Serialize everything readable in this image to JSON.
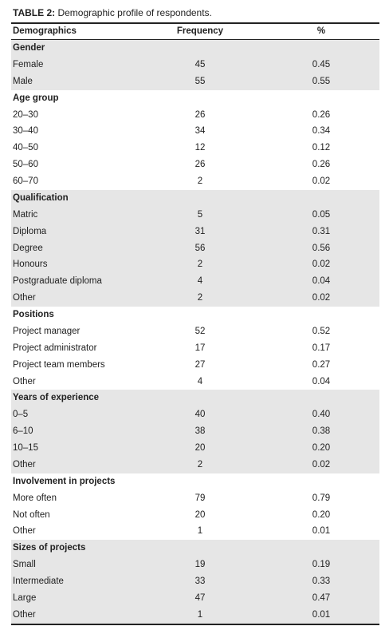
{
  "caption": {
    "label": "TABLE 2:",
    "text": "Demographic profile of respondents."
  },
  "table": {
    "headers": [
      "Demographics",
      "Frequency",
      "%"
    ],
    "groups": [
      {
        "title": "Gender",
        "rows": [
          [
            "Female",
            45,
            "0.45"
          ],
          [
            "Male",
            55,
            "0.55"
          ]
        ]
      },
      {
        "title": "Age group",
        "rows": [
          [
            "20–30",
            26,
            "0.26"
          ],
          [
            "30–40",
            34,
            "0.34"
          ],
          [
            "40–50",
            12,
            "0.12"
          ],
          [
            "50–60",
            26,
            "0.26"
          ],
          [
            "60–70",
            2,
            "0.02"
          ]
        ]
      },
      {
        "title": "Qualification",
        "rows": [
          [
            "Matric",
            5,
            "0.05"
          ],
          [
            "Diploma",
            31,
            "0.31"
          ],
          [
            "Degree",
            56,
            "0.56"
          ],
          [
            "Honours",
            2,
            "0.02"
          ],
          [
            "Postgraduate diploma",
            4,
            "0.04"
          ],
          [
            "Other",
            2,
            "0.02"
          ]
        ]
      },
      {
        "title": "Positions",
        "rows": [
          [
            "Project manager",
            52,
            "0.52"
          ],
          [
            "Project administrator",
            17,
            "0.17"
          ],
          [
            "Project team members",
            27,
            "0.27"
          ],
          [
            "Other",
            4,
            "0.04"
          ]
        ]
      },
      {
        "title": "Years of experience",
        "rows": [
          [
            "0–5",
            40,
            "0.40"
          ],
          [
            "6–10",
            38,
            "0.38"
          ],
          [
            "10–15",
            20,
            "0.20"
          ],
          [
            "Other",
            2,
            "0.02"
          ]
        ]
      },
      {
        "title": "Involvement in projects",
        "rows": [
          [
            "More often",
            79,
            "0.79"
          ],
          [
            "Not often",
            20,
            "0.20"
          ],
          [
            "Other",
            1,
            "0.01"
          ]
        ]
      },
      {
        "title": "Sizes of projects",
        "rows": [
          [
            "Small",
            19,
            "0.19"
          ],
          [
            "Intermediate",
            33,
            "0.33"
          ],
          [
            "Large",
            47,
            "0.47"
          ],
          [
            "Other",
            1,
            "0.01"
          ]
        ]
      }
    ]
  }
}
